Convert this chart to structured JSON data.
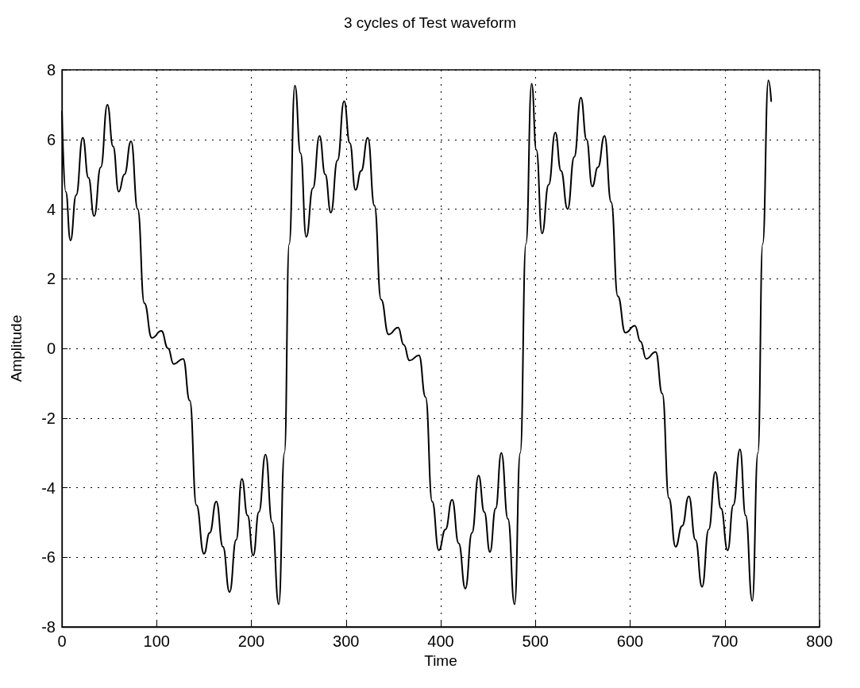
{
  "chart_data": {
    "type": "line",
    "title": "3 cycles of Test waveform",
    "xlabel": "Time",
    "ylabel": "Amplitude",
    "x": [
      0,
      4,
      9,
      15,
      22,
      28,
      34,
      41,
      48,
      54,
      60,
      66,
      73,
      80,
      87,
      95,
      105,
      112,
      118,
      128,
      135,
      142,
      150,
      156,
      163,
      170,
      177,
      184,
      190,
      196,
      202,
      208,
      215,
      222,
      229,
      235,
      240,
      246,
      252,
      258,
      265,
      272,
      278,
      284,
      291,
      298,
      304,
      310,
      316,
      323,
      330,
      337,
      345,
      355,
      361,
      367,
      377,
      384,
      391,
      398,
      405,
      412,
      419,
      426,
      433,
      440,
      446,
      452,
      458,
      464,
      471,
      478,
      484,
      490,
      496,
      501,
      507,
      514,
      521,
      527,
      534,
      541,
      548,
      554,
      560,
      566,
      573,
      580,
      587,
      595,
      605,
      611,
      617,
      627,
      634,
      641,
      648,
      655,
      662,
      669,
      676,
      683,
      690,
      696,
      703,
      709,
      716,
      722,
      729,
      735,
      740,
      746,
      749
    ],
    "series": [
      {
        "color": "#000000",
        "values": [
          6.8,
          4.5,
          3.1,
          4.4,
          6.05,
          4.9,
          3.8,
          5.2,
          7.0,
          5.8,
          4.5,
          5.0,
          5.95,
          4.0,
          1.3,
          0.3,
          0.5,
          0.0,
          -0.45,
          -0.3,
          -1.5,
          -4.5,
          -5.9,
          -5.3,
          -4.4,
          -5.7,
          -7.0,
          -5.5,
          -3.75,
          -4.8,
          -5.95,
          -4.7,
          -3.05,
          -5.0,
          -7.35,
          -3.0,
          3.0,
          7.55,
          5.6,
          3.2,
          4.6,
          6.1,
          5.0,
          3.9,
          5.4,
          7.1,
          5.9,
          4.55,
          5.1,
          6.05,
          4.1,
          1.4,
          0.4,
          0.6,
          0.1,
          -0.35,
          -0.2,
          -1.4,
          -4.4,
          -5.8,
          -5.2,
          -4.35,
          -5.6,
          -6.9,
          -5.3,
          -3.65,
          -4.7,
          -5.85,
          -4.6,
          -3.0,
          -4.9,
          -7.35,
          -3.0,
          3.0,
          7.6,
          5.7,
          3.3,
          4.7,
          6.2,
          5.1,
          4.0,
          5.5,
          7.2,
          6.0,
          4.65,
          5.2,
          6.1,
          4.2,
          1.5,
          0.45,
          0.65,
          0.2,
          -0.3,
          -0.1,
          -1.3,
          -4.3,
          -5.7,
          -5.1,
          -4.25,
          -5.5,
          -6.85,
          -5.2,
          -3.55,
          -4.6,
          -5.8,
          -4.5,
          -2.9,
          -4.8,
          -7.25,
          -3.0,
          3.0,
          7.7,
          7.1
        ]
      }
    ],
    "xlim": [
      0,
      800
    ],
    "xticks": [
      0,
      100,
      200,
      300,
      400,
      500,
      600,
      700,
      800
    ],
    "ylim": [
      -8,
      8
    ],
    "yticks": [
      -8,
      -6,
      -4,
      -2,
      0,
      2,
      4,
      6,
      8
    ],
    "grid": true,
    "marker": "none",
    "line_style": "solid"
  }
}
